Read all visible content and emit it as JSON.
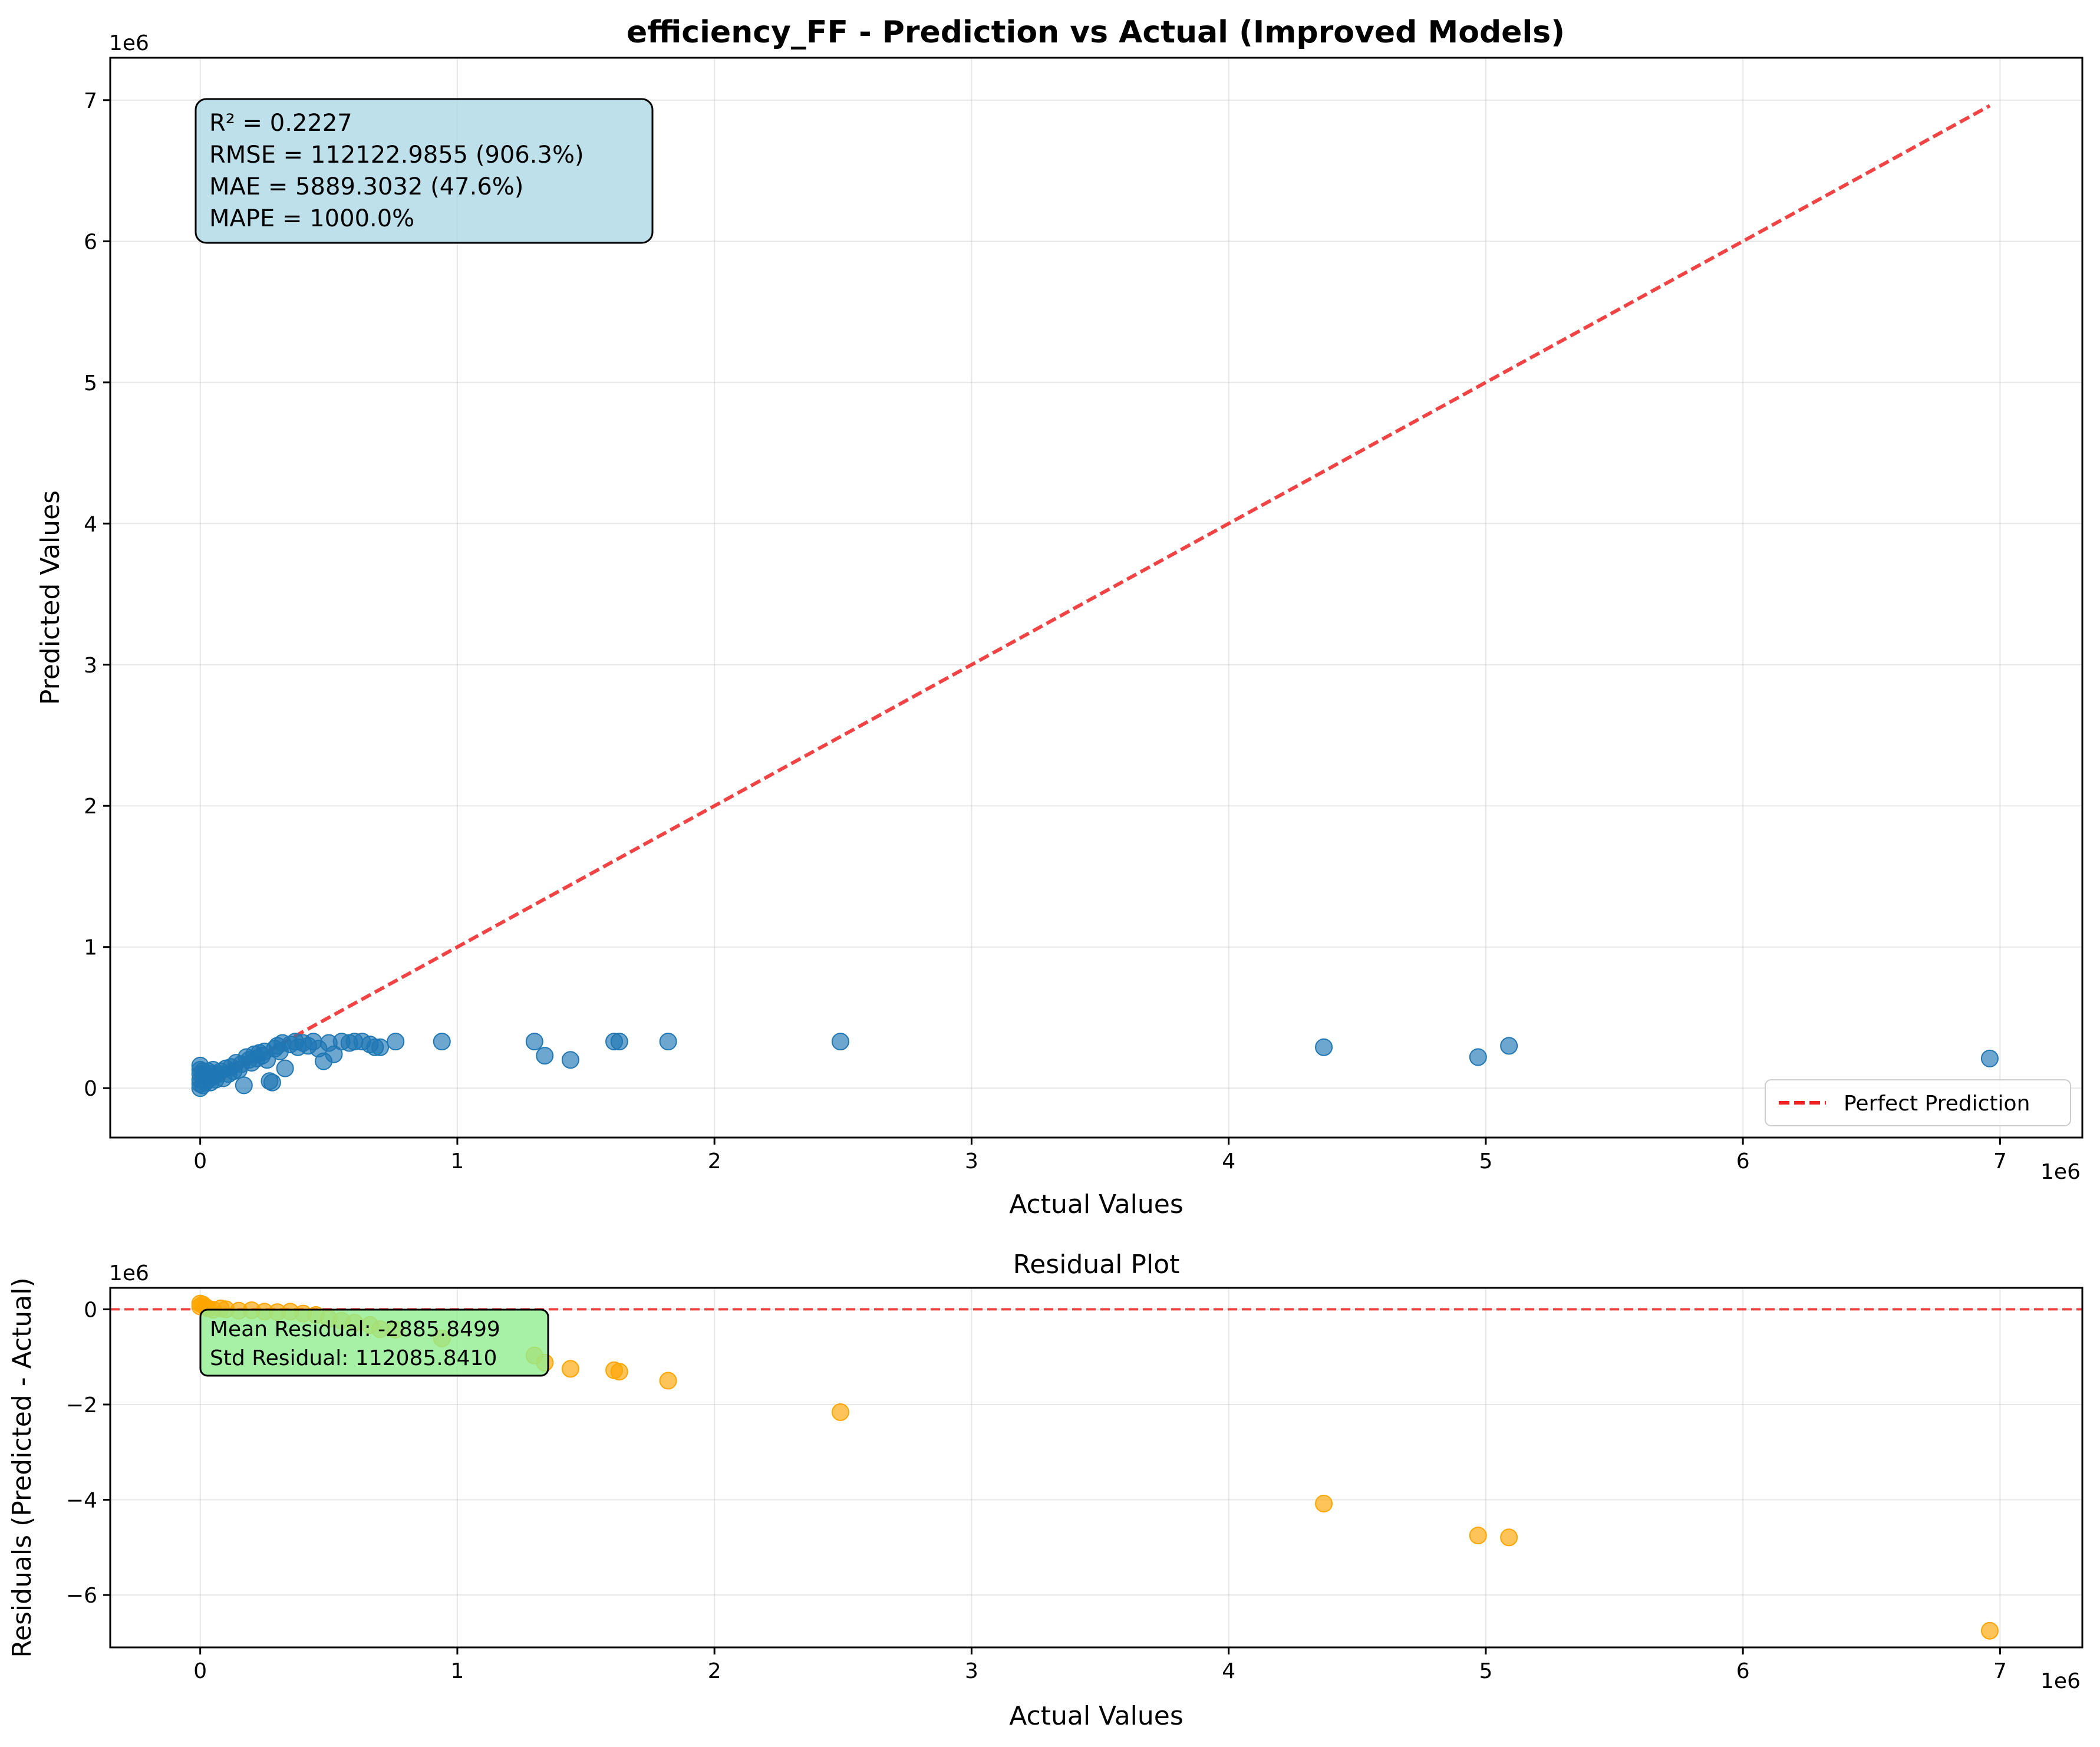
{
  "chart_data": [
    {
      "type": "scatter",
      "title": "efficiency_FF - Prediction vs Actual (Improved Models)",
      "xlabel": "Actual Values",
      "ylabel": "Predicted Values",
      "x_offset_label": "1e6",
      "y_offset_label": "1e6",
      "xlim": [
        -0.35,
        7.32
      ],
      "ylim": [
        -0.35,
        7.3
      ],
      "xticks": [
        0,
        1,
        2,
        3,
        4,
        5,
        6,
        7
      ],
      "xtick_labels": [
        "0",
        "1",
        "2",
        "3",
        "4",
        "5",
        "6",
        "7"
      ],
      "yticks": [
        0,
        1,
        2,
        3,
        4,
        5,
        6,
        7
      ],
      "ytick_labels": [
        "0",
        "1",
        "2",
        "3",
        "4",
        "5",
        "6",
        "7"
      ],
      "grid": true,
      "legend": {
        "position": "lower-right",
        "entries": [
          "Perfect Prediction"
        ]
      },
      "reference_line": {
        "name": "Perfect Prediction",
        "x": [
          0,
          6.96
        ],
        "y": [
          0,
          6.96
        ],
        "color": "#ee2222",
        "style": "dashed"
      },
      "stats_box": [
        "R² = 0.2227",
        "RMSE = 112122.9855 (906.3%)",
        "MAE = 5889.3032 (47.6%)",
        "MAPE = 1000.0%"
      ],
      "point_color": "#1f77b4",
      "x": [
        0.0,
        0.0,
        0.0,
        0.0,
        0.0,
        0.0,
        0.01,
        0.01,
        0.01,
        0.02,
        0.02,
        0.03,
        0.03,
        0.04,
        0.04,
        0.05,
        0.05,
        0.06,
        0.07,
        0.08,
        0.09,
        0.1,
        0.11,
        0.12,
        0.13,
        0.14,
        0.15,
        0.16,
        0.17,
        0.18,
        0.19,
        0.2,
        0.21,
        0.22,
        0.23,
        0.24,
        0.25,
        0.26,
        0.27,
        0.28,
        0.29,
        0.3,
        0.31,
        0.32,
        0.33,
        0.35,
        0.37,
        0.38,
        0.4,
        0.42,
        0.44,
        0.46,
        0.48,
        0.5,
        0.52,
        0.55,
        0.58,
        0.6,
        0.63,
        0.66,
        0.68,
        0.7,
        0.76,
        0.94,
        1.3,
        1.34,
        1.44,
        1.61,
        1.63,
        1.82,
        2.49,
        4.37,
        4.97,
        5.09,
        6.96
      ],
      "y": [
        0.0,
        0.03,
        0.06,
        0.1,
        0.13,
        0.16,
        0.02,
        0.08,
        0.12,
        0.04,
        0.1,
        0.06,
        0.12,
        0.04,
        0.1,
        0.08,
        0.13,
        0.06,
        0.1,
        0.12,
        0.07,
        0.14,
        0.1,
        0.15,
        0.12,
        0.18,
        0.13,
        0.17,
        0.02,
        0.22,
        0.2,
        0.18,
        0.24,
        0.21,
        0.25,
        0.23,
        0.26,
        0.2,
        0.05,
        0.04,
        0.28,
        0.3,
        0.26,
        0.32,
        0.14,
        0.31,
        0.33,
        0.29,
        0.32,
        0.3,
        0.33,
        0.28,
        0.19,
        0.32,
        0.24,
        0.33,
        0.32,
        0.33,
        0.33,
        0.31,
        0.29,
        0.29,
        0.33,
        0.33,
        0.33,
        0.23,
        0.2,
        0.33,
        0.33,
        0.33,
        0.33,
        0.29,
        0.22,
        0.3,
        0.21
      ]
    },
    {
      "type": "scatter",
      "title": "Residual Plot",
      "xlabel": "Actual Values",
      "ylabel": "Residuals (Predicted - Actual)",
      "x_offset_label": "1e6",
      "y_offset_label": "1e6",
      "xlim": [
        -0.35,
        7.32
      ],
      "ylim": [
        -7.1,
        0.45
      ],
      "xticks": [
        0,
        1,
        2,
        3,
        4,
        5,
        6,
        7
      ],
      "xtick_labels": [
        "0",
        "1",
        "2",
        "3",
        "4",
        "5",
        "6",
        "7"
      ],
      "yticks": [
        0,
        -2,
        -4,
        -6
      ],
      "ytick_labels": [
        "0",
        "−2",
        "−4",
        "−6"
      ],
      "grid": true,
      "reference_line": {
        "y": 0,
        "color": "#ee2222",
        "style": "dashed"
      },
      "stats_box": [
        "Mean Residual: -2885.8499",
        "Std Residual: 112085.8410"
      ],
      "point_color": "#ffa500",
      "x": [
        0.0,
        0.0,
        0.01,
        0.02,
        0.03,
        0.05,
        0.08,
        0.1,
        0.15,
        0.2,
        0.25,
        0.3,
        0.35,
        0.4,
        0.45,
        0.5,
        0.55,
        0.6,
        0.66,
        0.7,
        0.76,
        0.94,
        1.3,
        1.34,
        1.44,
        1.61,
        1.63,
        1.82,
        2.49,
        4.37,
        4.97,
        5.09,
        6.96
      ],
      "y": [
        0.12,
        0.06,
        0.1,
        0.05,
        0.02,
        -0.01,
        0.02,
        0.0,
        -0.03,
        -0.02,
        -0.05,
        -0.06,
        -0.05,
        -0.09,
        -0.12,
        -0.2,
        -0.24,
        -0.28,
        -0.33,
        -0.42,
        -0.43,
        -0.61,
        -0.97,
        -1.12,
        -1.25,
        -1.28,
        -1.31,
        -1.5,
        -2.16,
        -4.08,
        -4.75,
        -4.79,
        -6.75
      ]
    }
  ]
}
